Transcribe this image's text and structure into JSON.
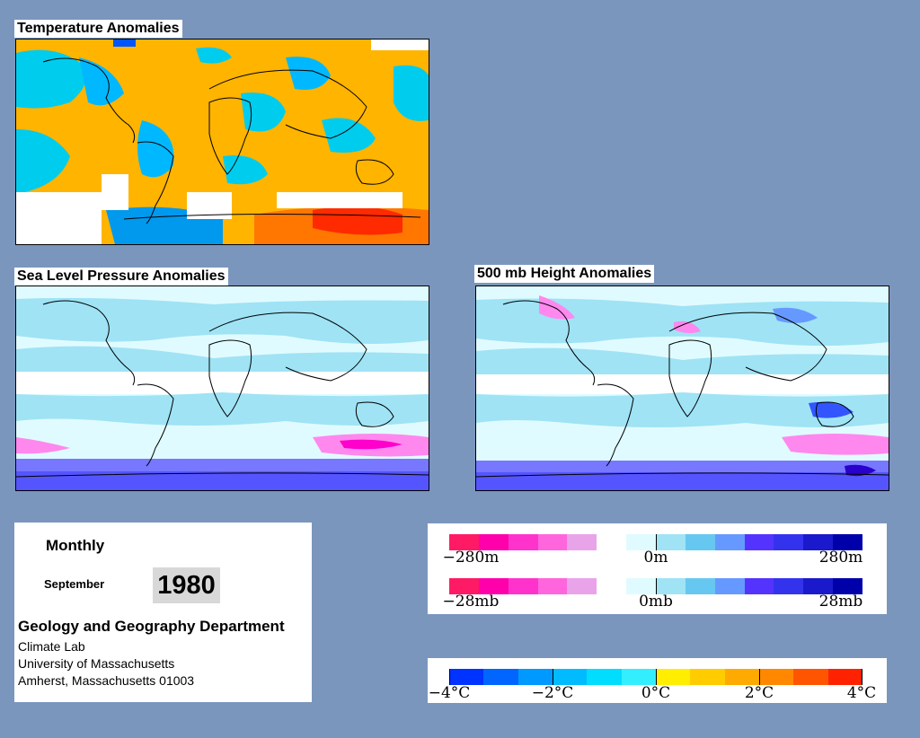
{
  "panels": {
    "temperature": {
      "title": "Temperature Anomalies"
    },
    "slp": {
      "title": "Sea Level Pressure Anomalies"
    },
    "height500": {
      "title": "500 mb Height Anomalies"
    }
  },
  "info": {
    "frequency": "Monthly",
    "month": "September",
    "year": "1980",
    "department": "Geology and Geography Department",
    "address_lines": [
      "Climate Lab",
      "University of Massachusetts",
      "Amherst, Massachusetts 01003"
    ]
  },
  "legends": {
    "height": {
      "labels": [
        "−280m",
        "0m",
        "280m"
      ],
      "colors": [
        "#ff1a66",
        "#ff00aa",
        "#ff33cc",
        "#ff66dd",
        "#e9a3e9",
        "#ffffff",
        "#e0fbff",
        "#9fe3f5",
        "#66c8f0",
        "#6699ff",
        "#5533ff",
        "#3333ee",
        "#1a1acc",
        "#0000aa"
      ]
    },
    "pressure": {
      "labels": [
        "−28mb",
        "0mb",
        "28mb"
      ],
      "colors": [
        "#ff1a66",
        "#ff00aa",
        "#ff33cc",
        "#ff66dd",
        "#e9a3e9",
        "#ffffff",
        "#e0fbff",
        "#9fe3f5",
        "#66c8f0",
        "#6699ff",
        "#5533ff",
        "#3333ee",
        "#1a1acc",
        "#0000aa"
      ]
    },
    "temperature": {
      "labels": [
        "−4°C",
        "−2°C",
        "0°C",
        "2°C",
        "4°C"
      ],
      "colors": [
        "#0033ff",
        "#0066ff",
        "#0099ff",
        "#00bbff",
        "#00ddff",
        "#33eeff",
        "#ffee00",
        "#ffcc00",
        "#ffaa00",
        "#ff8800",
        "#ff5500",
        "#ff2200"
      ]
    }
  }
}
